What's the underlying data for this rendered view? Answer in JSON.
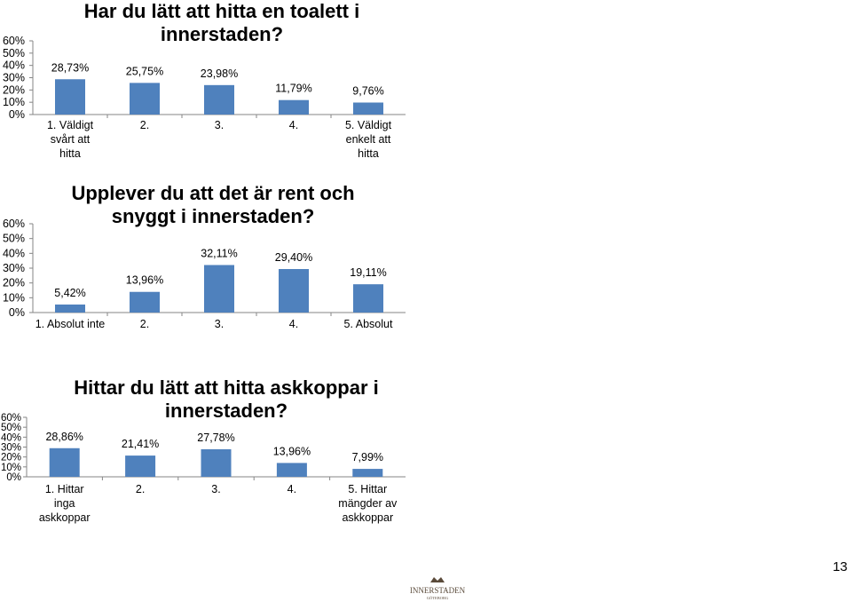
{
  "page": {
    "number": "13",
    "logo_text": "INNERSTADEN",
    "logo_subtext": "GÖTEBORG"
  },
  "chart_data": [
    {
      "type": "bar",
      "title": "Har du lätt att hitta en toalett  i innerstaden?",
      "categories": [
        "1. Väldigt svårt att hitta",
        "2.",
        "3.",
        "4.",
        "5. Väldigt enkelt att hitta"
      ],
      "values": [
        28.73,
        25.75,
        23.98,
        11.79,
        9.76
      ],
      "value_labels": [
        "28,73%",
        "25,75%",
        "23,98%",
        "11,79%",
        "9,76%"
      ],
      "y_ticks": [
        "0%",
        "10%",
        "20%",
        "30%",
        "40%",
        "50%",
        "60%"
      ],
      "ylim": [
        0,
        60
      ],
      "grid": false,
      "bar_color": "#4F81BD"
    },
    {
      "type": "bar",
      "title": "Upplever du att det är rent och snyggt i innerstaden?",
      "categories": [
        "1. Absolut inte",
        "2.",
        "3.",
        "4.",
        "5. Absolut"
      ],
      "values": [
        5.42,
        13.96,
        32.11,
        29.4,
        19.11
      ],
      "value_labels": [
        "5,42%",
        "13,96%",
        "32,11%",
        "29,40%",
        "19,11%"
      ],
      "y_ticks": [
        "0%",
        "10%",
        "20%",
        "30%",
        "40%",
        "50%",
        "60%"
      ],
      "ylim": [
        0,
        60
      ],
      "grid": false,
      "bar_color": "#4F81BD"
    },
    {
      "type": "bar",
      "title": "Hittar du lätt att hitta askkoppar i innerstaden?",
      "categories": [
        "1. Hittar inga askkoppar",
        "2.",
        "3.",
        "4.",
        "5. Hittar mängder av askkoppar"
      ],
      "values": [
        28.86,
        21.41,
        27.78,
        13.96,
        7.99
      ],
      "value_labels": [
        "28,86%",
        "21,41%",
        "27,78%",
        "13,96%",
        "7,99%"
      ],
      "y_ticks": [
        "0%",
        "10%",
        "20%",
        "30%",
        "40%",
        "50%",
        "60%"
      ],
      "ylim": [
        0,
        60
      ],
      "grid": false,
      "bar_color": "#4F81BD"
    }
  ]
}
